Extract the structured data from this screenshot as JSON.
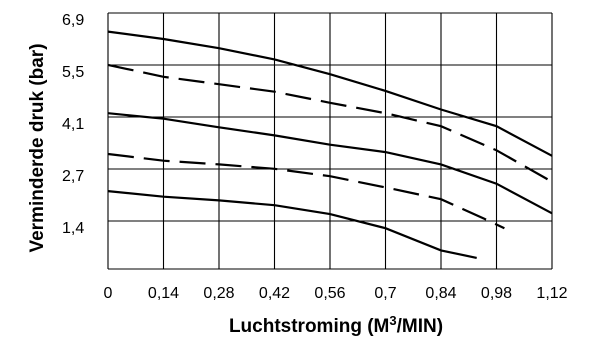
{
  "chart_data": {
    "type": "line",
    "title": "",
    "xlabel_main": "Luchtstroming (M",
    "xlabel_sup": "3",
    "xlabel_tail": "/MIN)",
    "ylabel": "Verminderde druk (bar)",
    "x_ticks": [
      "0",
      "0,14",
      "0,28",
      "0,42",
      "0,56",
      "0,7",
      "0,84",
      "0,98",
      "1,12"
    ],
    "y_ticks": [
      "6,9",
      "5,5",
      "4,1",
      "2,7",
      "1,4"
    ],
    "xlim": [
      0,
      1.12
    ],
    "ylim": [
      0,
      6.9
    ],
    "grid": true,
    "series": [
      {
        "style": "solid",
        "points": [
          [
            0,
            6.4
          ],
          [
            0.14,
            6.2
          ],
          [
            0.28,
            5.95
          ],
          [
            0.42,
            5.65
          ],
          [
            0.56,
            5.25
          ],
          [
            0.7,
            4.8
          ],
          [
            0.84,
            4.3
          ],
          [
            0.98,
            3.85
          ],
          [
            1.12,
            3.05
          ]
        ]
      },
      {
        "style": "dashed",
        "points": [
          [
            0,
            5.5
          ],
          [
            0.14,
            5.18
          ],
          [
            0.28,
            4.98
          ],
          [
            0.42,
            4.78
          ],
          [
            0.56,
            4.48
          ],
          [
            0.7,
            4.2
          ],
          [
            0.84,
            3.85
          ],
          [
            0.98,
            3.2
          ],
          [
            1.12,
            2.35
          ]
        ]
      },
      {
        "style": "solid",
        "points": [
          [
            0,
            4.2
          ],
          [
            0.14,
            4.05
          ],
          [
            0.28,
            3.82
          ],
          [
            0.42,
            3.6
          ],
          [
            0.56,
            3.35
          ],
          [
            0.7,
            3.15
          ],
          [
            0.84,
            2.82
          ],
          [
            0.98,
            2.3
          ],
          [
            1.12,
            1.5
          ]
        ]
      },
      {
        "style": "dashed",
        "points": [
          [
            0,
            3.1
          ],
          [
            0.14,
            2.92
          ],
          [
            0.28,
            2.82
          ],
          [
            0.42,
            2.7
          ],
          [
            0.56,
            2.5
          ],
          [
            0.7,
            2.2
          ],
          [
            0.84,
            1.88
          ],
          [
            0.95,
            1.35
          ],
          [
            1.0,
            1.1
          ]
        ]
      },
      {
        "style": "solid",
        "points": [
          [
            0,
            2.1
          ],
          [
            0.14,
            1.95
          ],
          [
            0.28,
            1.85
          ],
          [
            0.42,
            1.72
          ],
          [
            0.56,
            1.48
          ],
          [
            0.7,
            1.1
          ],
          [
            0.84,
            0.5
          ],
          [
            0.93,
            0.3
          ]
        ]
      }
    ]
  }
}
